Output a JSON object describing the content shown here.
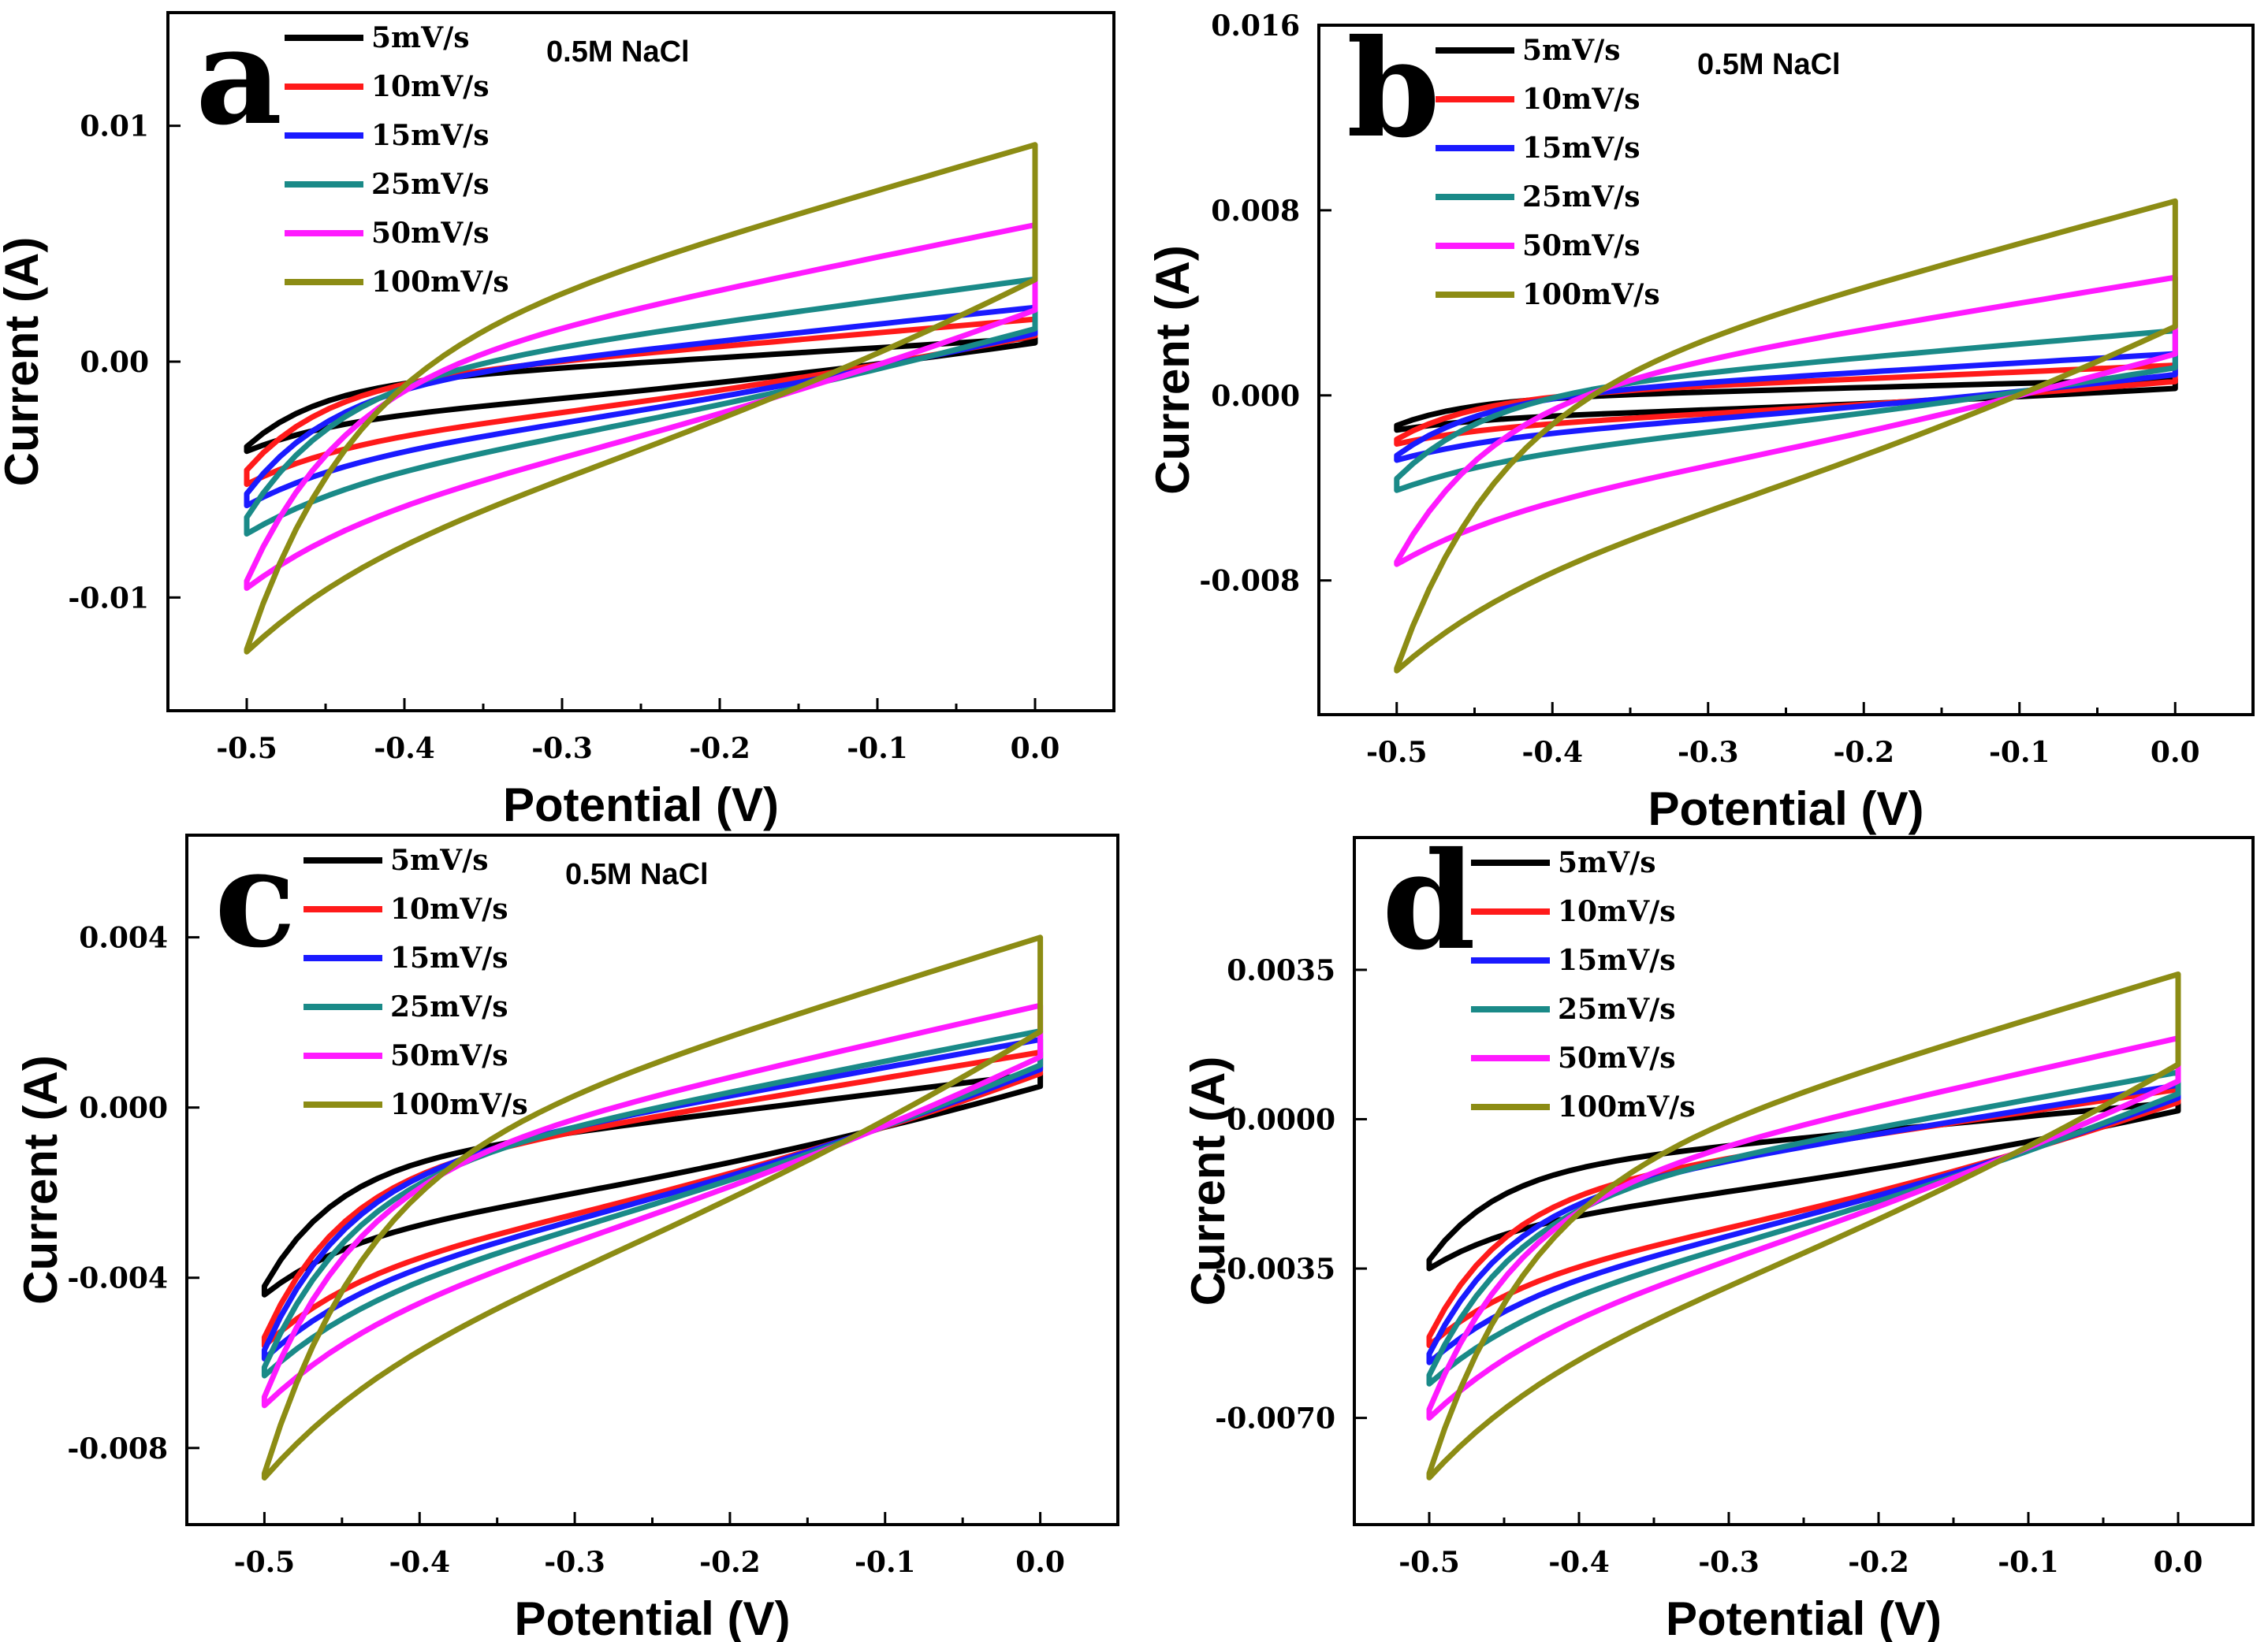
{
  "chart_data": [
    {
      "type": "line",
      "panel_label": "a",
      "annotation": "0.5M NaCl",
      "xlabel": "Potential (V)",
      "ylabel": "Current (A)",
      "xlim": [
        -0.55,
        0.05
      ],
      "ylim": [
        -0.0148,
        0.0148
      ],
      "xticks": [
        -0.5,
        -0.4,
        -0.3,
        -0.2,
        -0.1,
        0.0
      ],
      "xtick_labels": [
        "-0.5",
        "-0.4",
        "-0.3",
        "-0.2",
        "-0.1",
        "0.0"
      ],
      "yticks": [
        -0.01,
        0.0,
        0.01
      ],
      "ytick_labels": [
        "-0.01",
        "0.00",
        "0.01"
      ],
      "series": [
        {
          "name": "5mV/s",
          "color": "#000000",
          "upper_start": -0.0036,
          "upper_end": 0.001,
          "lower_start": -0.0038,
          "lower_end": 0.0008,
          "knee": -0.47
        },
        {
          "name": "10mV/s",
          "color": "#ff1a1a",
          "upper_start": -0.0046,
          "upper_end": 0.0018,
          "lower_start": -0.0052,
          "lower_end": 0.0011,
          "knee": -0.47
        },
        {
          "name": "15mV/s",
          "color": "#1a1aff",
          "upper_start": -0.0056,
          "upper_end": 0.0023,
          "lower_start": -0.0061,
          "lower_end": 0.0012,
          "knee": -0.47
        },
        {
          "name": "25mV/s",
          "color": "#1a8a88",
          "upper_start": -0.0066,
          "upper_end": 0.0035,
          "lower_start": -0.0073,
          "lower_end": 0.0014,
          "knee": -0.46
        },
        {
          "name": "50mV/s",
          "color": "#ff1aff",
          "upper_start": -0.0093,
          "upper_end": 0.0058,
          "lower_start": -0.0096,
          "lower_end": 0.0022,
          "knee": -0.45
        },
        {
          "name": "100mV/s",
          "color": "#8c8c14",
          "upper_start": -0.0122,
          "upper_end": 0.0092,
          "lower_start": -0.0123,
          "lower_end": 0.0035,
          "knee": -0.4
        }
      ]
    },
    {
      "type": "line",
      "panel_label": "b",
      "annotation": "0.5M NaCl",
      "xlabel": "Potential (V)",
      "ylabel": "Current (A)",
      "xlim": [
        -0.55,
        0.05
      ],
      "ylim": [
        -0.0138,
        0.016
      ],
      "xticks": [
        -0.5,
        -0.4,
        -0.3,
        -0.2,
        -0.1,
        0.0
      ],
      "xtick_labels": [
        "-0.5",
        "-0.4",
        "-0.3",
        "-0.2",
        "-0.1",
        "0.0"
      ],
      "yticks": [
        -0.008,
        0.0,
        0.008,
        0.016
      ],
      "ytick_labels": [
        "-0.008",
        "0.000",
        "0.008",
        "0.016"
      ],
      "series": [
        {
          "name": "5mV/s",
          "color": "#000000",
          "upper_start": -0.0013,
          "upper_end": 0.0007,
          "lower_start": -0.0015,
          "lower_end": 0.0003,
          "knee": -0.48
        },
        {
          "name": "10mV/s",
          "color": "#ff1a1a",
          "upper_start": -0.0019,
          "upper_end": 0.0013,
          "lower_start": -0.0021,
          "lower_end": 0.0006,
          "knee": -0.48
        },
        {
          "name": "15mV/s",
          "color": "#1a1aff",
          "upper_start": -0.0026,
          "upper_end": 0.0018,
          "lower_start": -0.0028,
          "lower_end": 0.0009,
          "knee": -0.48
        },
        {
          "name": "25mV/s",
          "color": "#1a8a88",
          "upper_start": -0.0036,
          "upper_end": 0.0028,
          "lower_start": -0.0041,
          "lower_end": 0.0012,
          "knee": -0.47
        },
        {
          "name": "50mV/s",
          "color": "#ff1aff",
          "upper_start": -0.0072,
          "upper_end": 0.0051,
          "lower_start": -0.0073,
          "lower_end": 0.0018,
          "knee": -0.45
        },
        {
          "name": "100mV/s",
          "color": "#8c8c14",
          "upper_start": -0.0118,
          "upper_end": 0.0084,
          "lower_start": -0.0119,
          "lower_end": 0.003,
          "knee": -0.4
        }
      ]
    },
    {
      "type": "line",
      "panel_label": "c",
      "annotation": "0.5M NaCl",
      "xlabel": "Potential (V)",
      "ylabel": "Current (A)",
      "xlim": [
        -0.55,
        0.05
      ],
      "ylim": [
        -0.0098,
        0.0064
      ],
      "xticks": [
        -0.5,
        -0.4,
        -0.3,
        -0.2,
        -0.1,
        0.0
      ],
      "xtick_labels": [
        "-0.5",
        "-0.4",
        "-0.3",
        "-0.2",
        "-0.1",
        "0.0"
      ],
      "yticks": [
        -0.008,
        -0.004,
        0.0,
        0.004
      ],
      "ytick_labels": [
        "-0.008",
        "-0.004",
        "0.000",
        "0.004"
      ],
      "series": [
        {
          "name": "5mV/s",
          "color": "#000000",
          "upper_start": -0.0042,
          "upper_end": 0.0008,
          "lower_start": -0.0044,
          "lower_end": 0.0005,
          "knee": -0.47
        },
        {
          "name": "10mV/s",
          "color": "#ff1a1a",
          "upper_start": -0.0054,
          "upper_end": 0.0013,
          "lower_start": -0.0056,
          "lower_end": 0.0008,
          "knee": -0.45
        },
        {
          "name": "15mV/s",
          "color": "#1a1aff",
          "upper_start": -0.0057,
          "upper_end": 0.0016,
          "lower_start": -0.0059,
          "lower_end": 0.0009,
          "knee": -0.45
        },
        {
          "name": "25mV/s",
          "color": "#1a8a88",
          "upper_start": -0.0061,
          "upper_end": 0.0018,
          "lower_start": -0.0063,
          "lower_end": 0.001,
          "knee": -0.45
        },
        {
          "name": "50mV/s",
          "color": "#ff1aff",
          "upper_start": -0.0068,
          "upper_end": 0.0024,
          "lower_start": -0.007,
          "lower_end": 0.0012,
          "knee": -0.44
        },
        {
          "name": "100mV/s",
          "color": "#8c8c14",
          "upper_start": -0.0086,
          "upper_end": 0.004,
          "lower_start": -0.0087,
          "lower_end": 0.0018,
          "knee": -0.38
        }
      ]
    },
    {
      "type": "line",
      "panel_label": "d",
      "annotation": "",
      "xlabel": "Potential (V)",
      "ylabel": "Current (A)",
      "xlim": [
        -0.55,
        0.05
      ],
      "ylim": [
        -0.0095,
        0.0066
      ],
      "xticks": [
        -0.5,
        -0.4,
        -0.3,
        -0.2,
        -0.1,
        0.0
      ],
      "xtick_labels": [
        "-0.5",
        "-0.4",
        "-0.3",
        "-0.2",
        "-0.1",
        "0.0"
      ],
      "yticks": [
        -0.007,
        -0.0035,
        0.0,
        0.0035
      ],
      "ytick_labels": [
        "-0.0070",
        "-0.0035",
        "0.0000",
        "0.0035"
      ],
      "series": [
        {
          "name": "5mV/s",
          "color": "#000000",
          "upper_start": -0.0033,
          "upper_end": 0.0004,
          "lower_start": -0.0035,
          "lower_end": 0.0002,
          "knee": -0.47
        },
        {
          "name": "10mV/s",
          "color": "#ff1a1a",
          "upper_start": -0.0051,
          "upper_end": 0.0007,
          "lower_start": -0.0053,
          "lower_end": 0.0004,
          "knee": -0.45
        },
        {
          "name": "15mV/s",
          "color": "#1a1aff",
          "upper_start": -0.0055,
          "upper_end": 0.0008,
          "lower_start": -0.0057,
          "lower_end": 0.0005,
          "knee": -0.45
        },
        {
          "name": "25mV/s",
          "color": "#1a8a88",
          "upper_start": -0.006,
          "upper_end": 0.0011,
          "lower_start": -0.0062,
          "lower_end": 0.0006,
          "knee": -0.45
        },
        {
          "name": "50mV/s",
          "color": "#ff1aff",
          "upper_start": -0.0068,
          "upper_end": 0.0019,
          "lower_start": -0.007,
          "lower_end": 0.0009,
          "knee": -0.44
        },
        {
          "name": "100mV/s",
          "color": "#8c8c14",
          "upper_start": -0.0083,
          "upper_end": 0.0034,
          "lower_start": -0.0084,
          "lower_end": 0.0013,
          "knee": -0.38
        }
      ]
    }
  ]
}
